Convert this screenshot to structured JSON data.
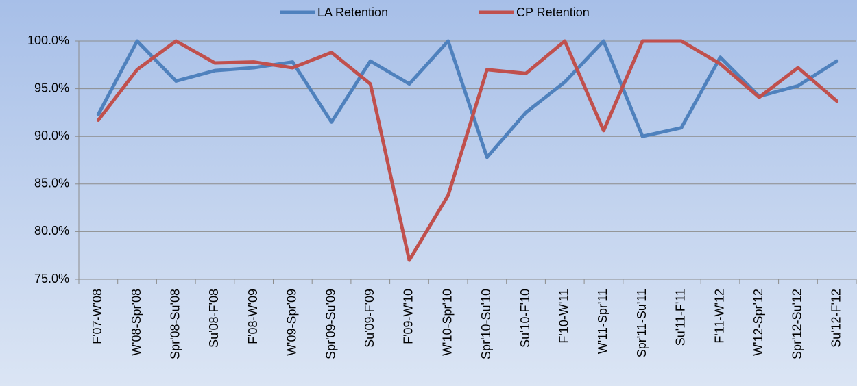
{
  "chart_data": {
    "type": "line",
    "categories": [
      "F'07-W'08",
      "W'08-Spr'08",
      "Spr'08-Su'08",
      "Su'08-F'08",
      "F'08-W'09",
      "W'09-Spr'09",
      "Spr'09-Su'09",
      "Su'09-F'09",
      "F'09-W'10",
      "W'10-Spr'10",
      "Spr'10-Su'10",
      "Su'10-F'10",
      "F'10-W'11",
      "W'11-Spr'11",
      "Spr'11-Su'11",
      "Su'11-F'11",
      "F'11-W'12",
      "W'12-Spr'12",
      "Spr'12-Su'12",
      "Su'12-F'12"
    ],
    "series": [
      {
        "name": "LA Retention",
        "color": "#4f81bd",
        "values": [
          92.3,
          100,
          95.8,
          96.9,
          97.2,
          97.8,
          91.5,
          97.9,
          95.5,
          100,
          87.8,
          92.5,
          95.7,
          100,
          90.0,
          90.9,
          98.3,
          94.2,
          95.3,
          97.9
        ]
      },
      {
        "name": "CP Retention",
        "color": "#c0504d",
        "values": [
          91.7,
          97.0,
          100,
          97.7,
          97.8,
          97.2,
          98.8,
          95.5,
          77.0,
          83.8,
          97.0,
          96.6,
          100,
          90.6,
          100,
          100,
          97.6,
          94.1,
          97.2,
          93.7
        ]
      }
    ],
    "ylim": [
      75,
      100
    ],
    "yticks": [
      {
        "value": 75,
        "label": "75.0%"
      },
      {
        "value": 80,
        "label": "80.0%"
      },
      {
        "value": 85,
        "label": "85.0%"
      },
      {
        "value": 90,
        "label": "90.0%"
      },
      {
        "value": 95,
        "label": "95.0%"
      },
      {
        "value": 100,
        "label": "100.0%"
      }
    ],
    "grid": true,
    "legend": "top"
  }
}
